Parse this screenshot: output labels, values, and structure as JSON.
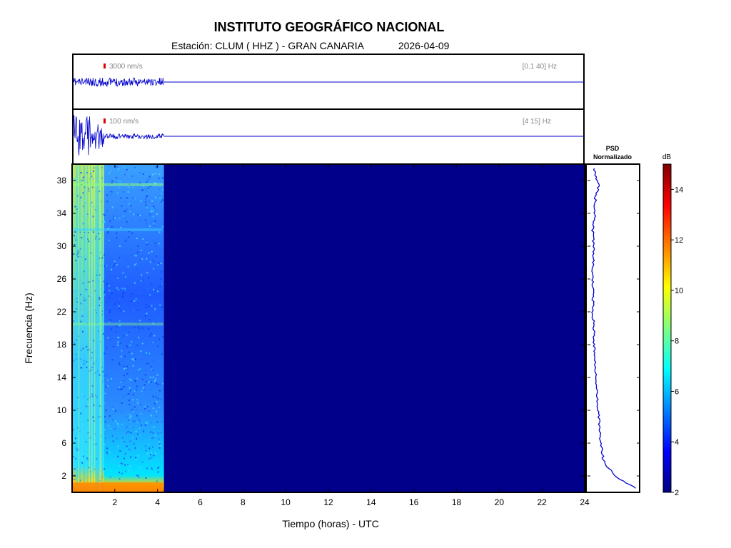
{
  "header": {
    "title": "INSTITUTO GEOGRÁFICO NACIONAL",
    "station": "Estación:  CLUM ( HHZ ) - GRAN CANARIA",
    "date": "2026-04-09"
  },
  "traces": [
    {
      "scale_label": "3000 nm/s",
      "band_label": "[0.1 40] Hz"
    },
    {
      "scale_label": "100 nm/s",
      "band_label": "[4 15] Hz"
    }
  ],
  "psd_panel": {
    "title_line1": "PSD",
    "title_line2": "Normalizado"
  },
  "colorbar": {
    "unit": "dB",
    "min": 2,
    "max": 15,
    "ticks": [
      "2",
      "4",
      "6",
      "8",
      "10",
      "12",
      "14"
    ],
    "colormap": "jet"
  },
  "colors": {
    "trace": "#0000cc",
    "background_spectrogram": "#00008b",
    "scale_marker": "#dd0000"
  },
  "chart_data": {
    "type": "heatmap",
    "xlabel": "Tiempo (horas) - UTC",
    "ylabel": "Frecuencia  (Hz)",
    "xlim": [
      0,
      24
    ],
    "ylim": [
      0,
      40
    ],
    "xticks": [
      "2",
      "4",
      "6",
      "8",
      "10",
      "12",
      "14",
      "16",
      "18",
      "20",
      "22",
      "24"
    ],
    "yticks": [
      "2",
      "6",
      "10",
      "14",
      "18",
      "22",
      "26",
      "30",
      "34",
      "38"
    ],
    "data_end_hour": 4.3,
    "high_activity_end_hour": 1.5,
    "psd_profile": {
      "frequency_hz": [
        0.5,
        1,
        2,
        3,
        4,
        6,
        8,
        10,
        12,
        14,
        16,
        18,
        20,
        22,
        24,
        26,
        28,
        30,
        32,
        34,
        36,
        37.5,
        38,
        39.5
      ],
      "normalized_db": [
        1.0,
        0.82,
        0.55,
        0.4,
        0.3,
        0.25,
        0.22,
        0.19,
        0.17,
        0.14,
        0.12,
        0.11,
        0.1,
        0.08,
        0.09,
        0.08,
        0.09,
        0.09,
        0.08,
        0.12,
        0.14,
        0.22,
        0.16,
        0.1
      ]
    }
  }
}
